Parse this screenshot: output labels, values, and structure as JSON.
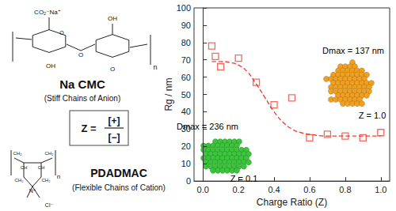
{
  "chart_data": {
    "type": "scatter",
    "xlabel": "Charge Ratio (Z)",
    "ylabel": "Rg / nm",
    "xlim": [
      -0.05,
      1.05
    ],
    "xticks": [
      {
        "value": 0,
        "label": "0.0"
      },
      0.2,
      0.4,
      0.6,
      0.8,
      {
        "value": 1,
        "label": "1.0"
      }
    ],
    "ylim": [
      0,
      100
    ],
    "yticks": [
      0,
      10,
      20,
      30,
      40,
      50,
      60,
      70,
      80,
      90,
      100
    ],
    "grid": false,
    "series": [
      {
        "type": "scatter",
        "color": "#e8463a",
        "marker": "square",
        "x": [
          0.05,
          0.07,
          0.1,
          0.2,
          0.3,
          0.4,
          0.5,
          0.6,
          0.7,
          0.8,
          0.9,
          1.0
        ],
        "values": [
          78,
          72,
          66,
          71,
          57,
          44,
          48,
          25,
          27,
          26,
          25,
          28
        ]
      },
      {
        "type": "line",
        "color": "#e8463a",
        "line_style": "dashed",
        "x": [
          0.05,
          0.1,
          0.15,
          0.2,
          0.25,
          0.3,
          0.35,
          0.4,
          0.45,
          0.5,
          0.55,
          0.6,
          0.7,
          0.8,
          0.9,
          1.0
        ],
        "values": [
          69,
          69,
          68.5,
          67,
          63,
          56,
          48,
          40,
          34,
          30,
          28,
          27,
          26,
          26,
          26,
          26
        ]
      }
    ],
    "annotations": [
      {
        "text": [
          "Dmax = 236 nm",
          "Z = 0.1"
        ],
        "color": "#3cc43c"
      },
      {
        "text": [
          "Dmax = 137 nm",
          "Z = 1.0"
        ],
        "color": "#f0a020"
      }
    ]
  },
  "structures": {
    "anion": {
      "name": "Na CMC",
      "desc": "(Stiff Chains of Anion)",
      "atoms": [
        "CO₂⁻Na⁺",
        "OH",
        "O",
        "OH",
        "O",
        "O",
        "n"
      ]
    },
    "formula": {
      "lhs": "Z =",
      "num": "[+]",
      "den": "[−]"
    },
    "cation": {
      "name": "PDADMAC",
      "desc": "(Flexible Chains of Cation)",
      "atoms": [
        "CH₂",
        "CH",
        "CH",
        "CH₂",
        "CH₂",
        "CH₂",
        "N⁺",
        "Cl⁻",
        "n"
      ]
    }
  }
}
